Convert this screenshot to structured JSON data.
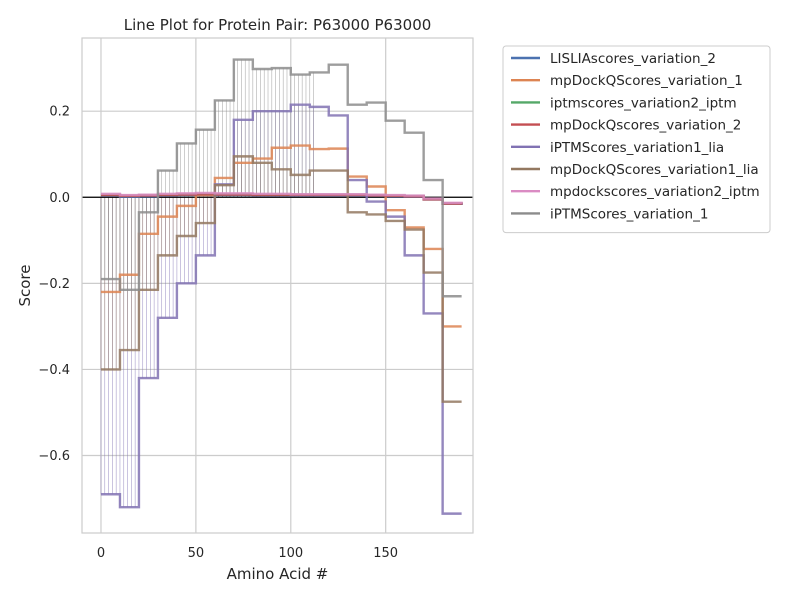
{
  "chart_data": {
    "type": "line",
    "title": "Line Plot for Protein Pair: P63000 P63000",
    "xlabel": "Amino Acid #",
    "ylabel": "Score",
    "xlim": [
      -10,
      196
    ],
    "ylim": [
      -0.78,
      0.37
    ],
    "xticks": [
      0,
      50,
      100,
      150
    ],
    "yticks": [
      -0.6,
      -0.4,
      -0.2,
      0.0,
      0.2
    ],
    "ytick_labels": [
      "−0.6",
      "−0.4",
      "−0.2",
      "0.0",
      "0.2"
    ],
    "grid": true,
    "zero_line": true,
    "legend_position": "outside-right-top",
    "series": [
      {
        "name": "LISLIAscores_variation_2",
        "color": "#4c72b0",
        "x": [
          0,
          10,
          20,
          30,
          40,
          50,
          60,
          70,
          80,
          90,
          100,
          110,
          120,
          130,
          140,
          150,
          160,
          170,
          180,
          190
        ],
        "y": [
          0.004,
          0.001,
          0.002,
          0.004,
          0.005,
          0.006,
          0.005,
          0.005,
          0.004,
          0.004,
          0.004,
          0.004,
          0.004,
          0.004,
          0.003,
          0.002,
          0.001,
          -0.005,
          -0.015,
          -0.018
        ]
      },
      {
        "name": "mpDockQScores_variation_1",
        "color": "#dd8452",
        "x": [
          0,
          10,
          20,
          30,
          40,
          50,
          60,
          70,
          80,
          90,
          100,
          110,
          120,
          130,
          140,
          150,
          160,
          170,
          180,
          190
        ],
        "y": [
          -0.22,
          -0.18,
          -0.085,
          -0.045,
          -0.02,
          0.005,
          0.045,
          0.08,
          0.09,
          0.115,
          0.12,
          0.112,
          0.113,
          0.048,
          0.025,
          -0.03,
          -0.07,
          -0.12,
          -0.3,
          -0.3
        ]
      },
      {
        "name": "iptmscores_variation2_iptm",
        "color": "#55a868",
        "x": [
          0,
          10,
          20,
          30,
          40,
          50,
          60,
          70,
          80,
          90,
          100,
          110,
          120,
          130,
          140,
          150,
          160,
          170,
          180,
          190
        ],
        "y": [
          0.006,
          0.004,
          0.005,
          0.006,
          0.007,
          0.008,
          0.007,
          0.007,
          0.006,
          0.006,
          0.006,
          0.006,
          0.006,
          0.006,
          0.005,
          0.004,
          0.003,
          -0.004,
          -0.014,
          -0.016
        ]
      },
      {
        "name": "mpDockQscores_variation_2",
        "color": "#c44e52",
        "x": [
          0,
          10,
          20,
          30,
          40,
          50,
          60,
          70,
          80,
          90,
          100,
          110,
          120,
          130,
          140,
          150,
          160,
          170,
          180,
          190
        ],
        "y": [
          0.005,
          0.003,
          0.004,
          0.005,
          0.006,
          0.007,
          0.006,
          0.006,
          0.005,
          0.005,
          0.005,
          0.005,
          0.005,
          0.005,
          0.004,
          0.003,
          0.002,
          -0.005,
          -0.015,
          -0.017
        ]
      },
      {
        "name": "iPTMScores_variation1_lia",
        "color": "#8172b3",
        "x": [
          0,
          10,
          20,
          30,
          40,
          50,
          60,
          70,
          80,
          90,
          100,
          110,
          120,
          130,
          140,
          150,
          160,
          170,
          180,
          190
        ],
        "y": [
          -0.69,
          -0.72,
          -0.42,
          -0.28,
          -0.2,
          -0.135,
          0.03,
          0.18,
          0.2,
          0.2,
          0.215,
          0.21,
          0.19,
          0.04,
          -0.01,
          -0.045,
          -0.135,
          -0.27,
          -0.735,
          -0.735
        ]
      },
      {
        "name": "mpDockQScores_variation1_lia",
        "color": "#937860",
        "x": [
          0,
          10,
          20,
          30,
          40,
          50,
          60,
          70,
          80,
          90,
          100,
          110,
          120,
          130,
          140,
          150,
          160,
          170,
          180,
          190
        ],
        "y": [
          -0.4,
          -0.355,
          -0.215,
          -0.135,
          -0.09,
          -0.06,
          0.028,
          0.095,
          0.08,
          0.065,
          0.052,
          0.062,
          0.062,
          -0.035,
          -0.04,
          -0.055,
          -0.075,
          -0.175,
          -0.475,
          -0.475
        ]
      },
      {
        "name": "mpdockscores_variation2_iptm",
        "color": "#da8bc3",
        "x": [
          0,
          10,
          20,
          30,
          40,
          50,
          60,
          70,
          80,
          90,
          100,
          110,
          120,
          130,
          140,
          150,
          160,
          170,
          180,
          190
        ],
        "y": [
          0.008,
          0.005,
          0.006,
          0.008,
          0.009,
          0.01,
          0.009,
          0.009,
          0.008,
          0.008,
          0.007,
          0.007,
          0.007,
          0.007,
          0.006,
          0.005,
          0.004,
          -0.003,
          -0.013,
          -0.015
        ]
      },
      {
        "name": "iPTMScores_variation_1",
        "color": "#8c8c8c",
        "x": [
          0,
          10,
          20,
          30,
          40,
          50,
          60,
          70,
          80,
          90,
          100,
          110,
          120,
          130,
          140,
          150,
          160,
          170,
          180,
          190
        ],
        "y": [
          -0.19,
          -0.215,
          -0.035,
          0.062,
          0.125,
          0.157,
          0.225,
          0.32,
          0.298,
          0.3,
          0.285,
          0.29,
          0.308,
          0.215,
          0.22,
          0.178,
          0.15,
          0.04,
          -0.23,
          -0.23
        ]
      }
    ]
  }
}
